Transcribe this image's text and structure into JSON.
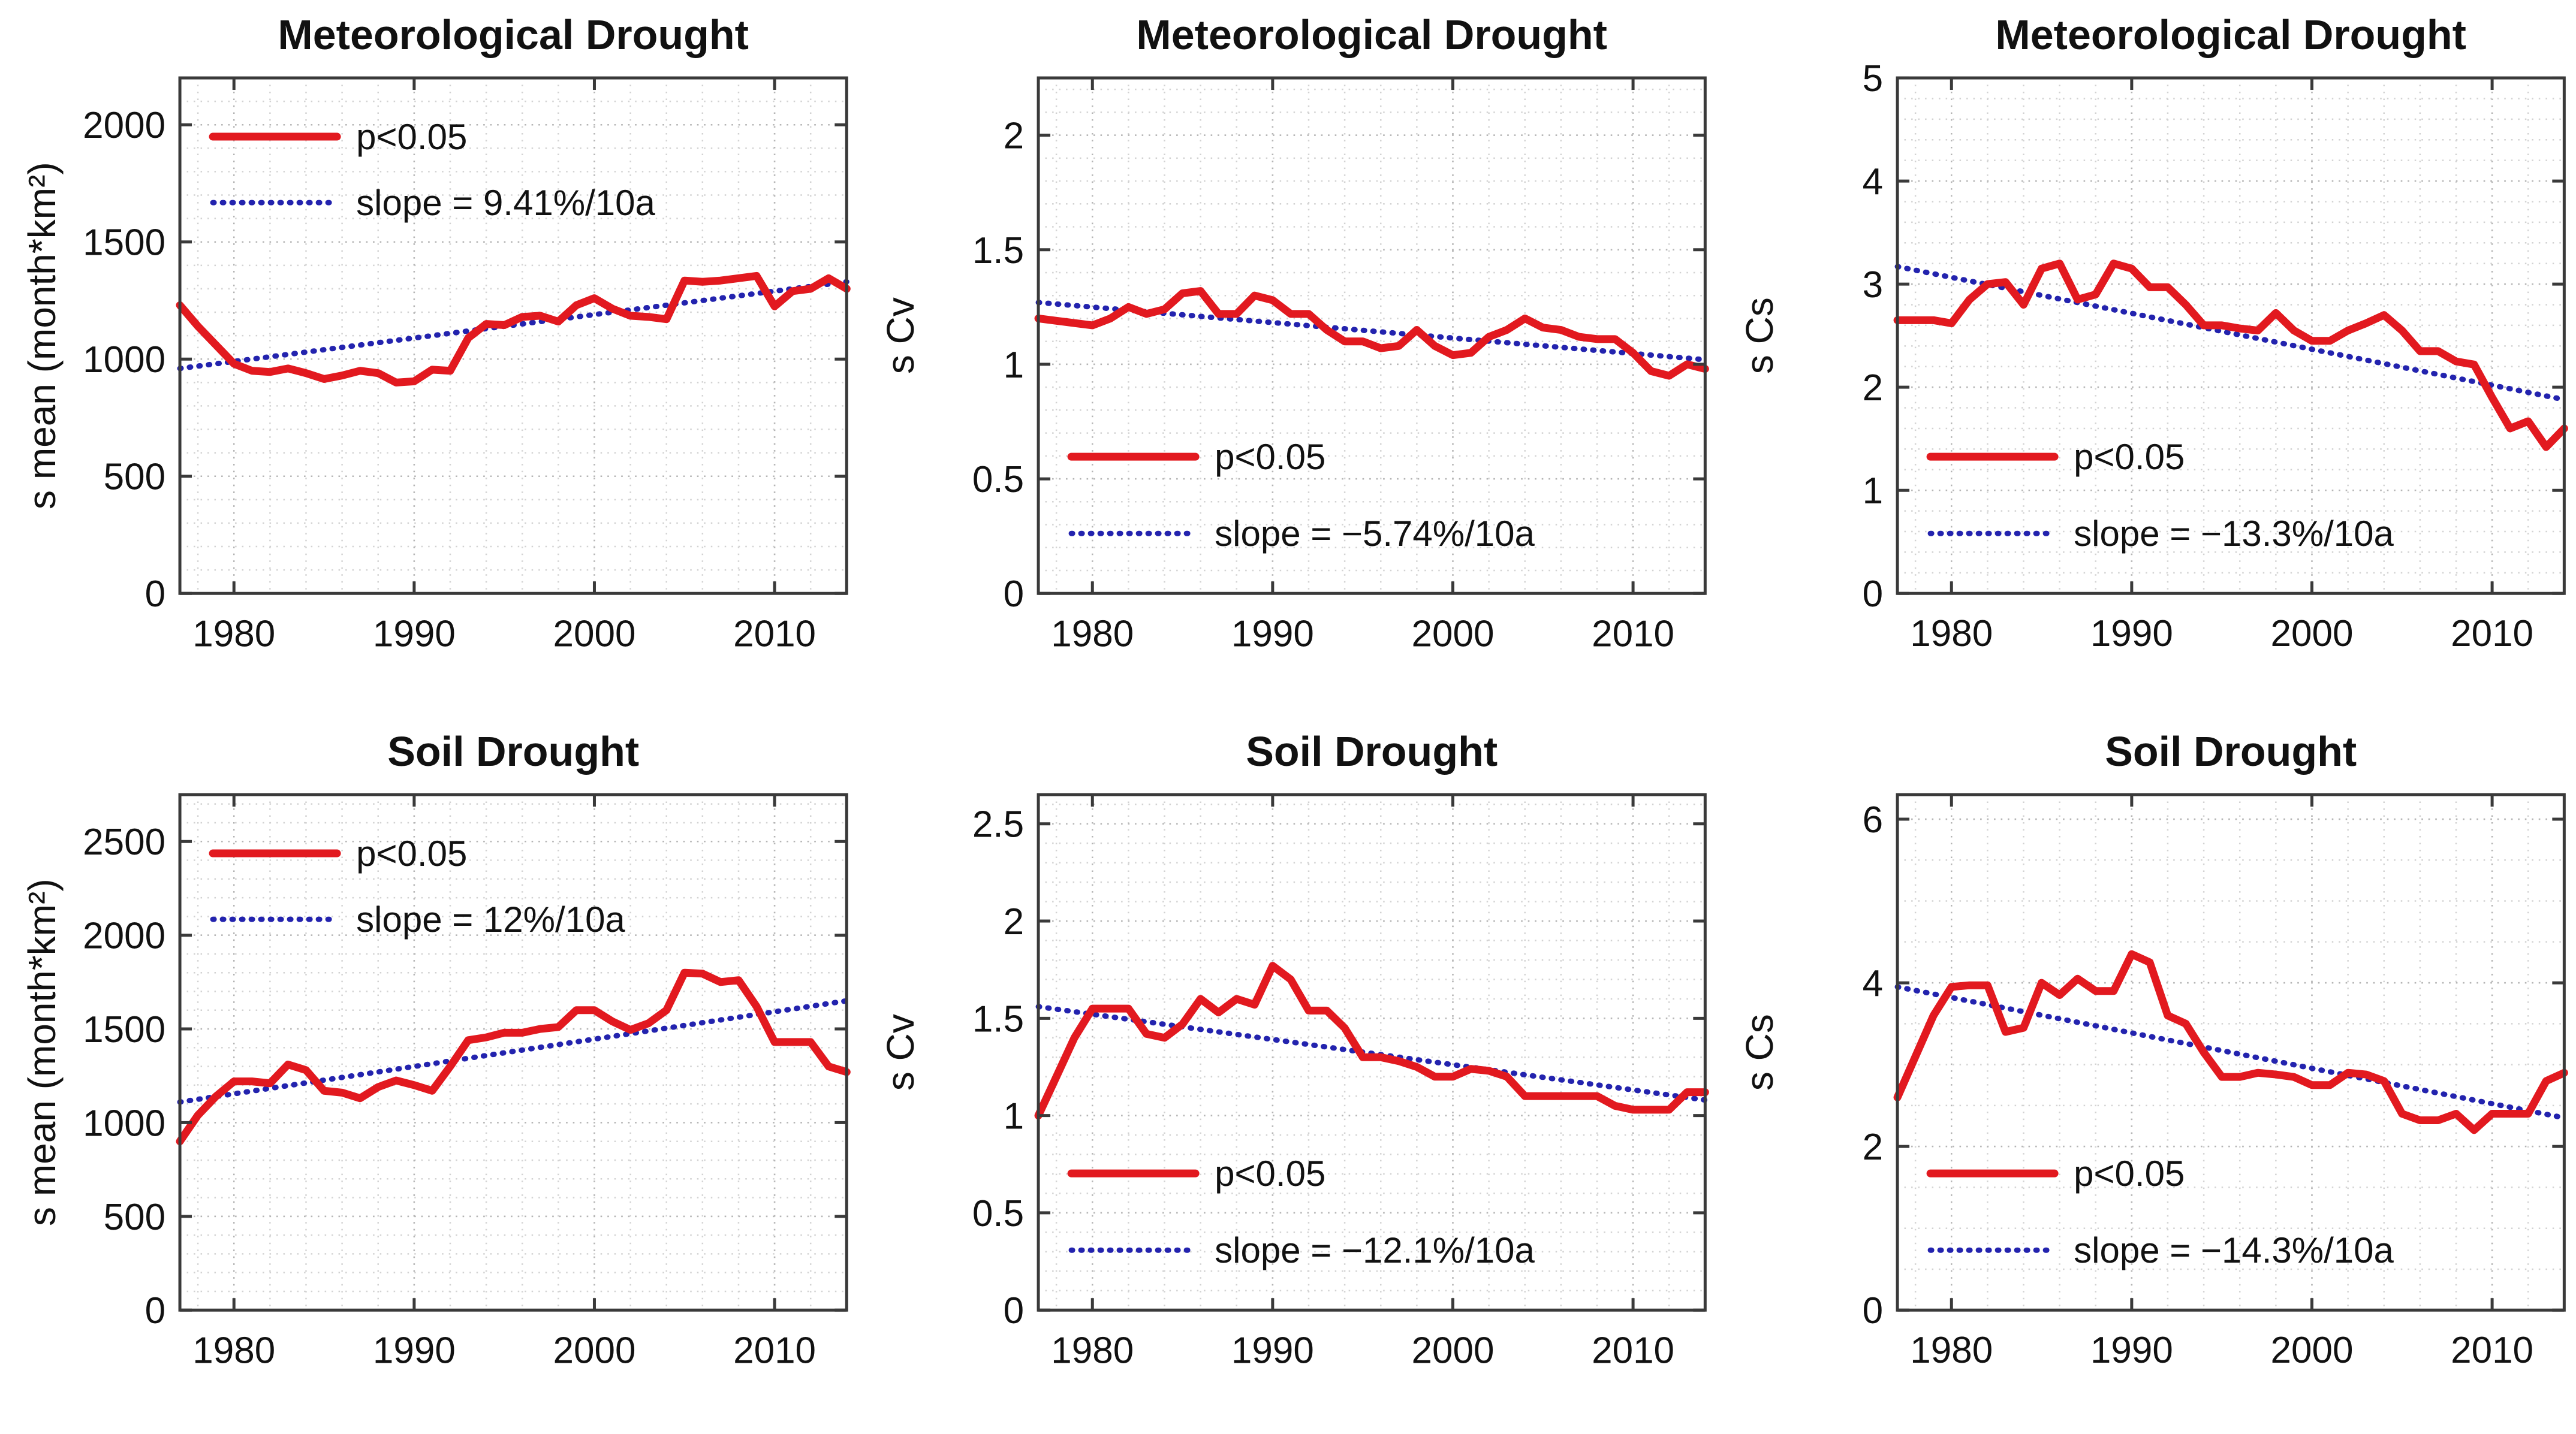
{
  "figure": {
    "background": "#ffffff",
    "series_color": "#e2191f",
    "trend_color": "#2323ae",
    "grid_color_major": "#b5b5b5",
    "grid_color_minor": "#d2d2d2",
    "axis_color": "#3a3a3a",
    "text_color": "#111111"
  },
  "chart_data": [
    {
      "id": "met-mean",
      "type": "line",
      "title": "Meteorological Drought",
      "xlabel": "",
      "ylabel": "s mean (month*km²)",
      "xlim": [
        1977,
        2014
      ],
      "ylim": [
        0,
        2200
      ],
      "xticks": [
        1980,
        1990,
        2000,
        2010
      ],
      "yticks": [
        0,
        500,
        1000,
        1500,
        2000
      ],
      "minor_x_step": 2,
      "minor_y_step": 100,
      "grid": true,
      "legend_position": "top-left",
      "legend": {
        "series_label": "p<0.05",
        "trend_label": "slope = 9.41%/10a"
      },
      "years": [
        1977,
        1978,
        1979,
        1980,
        1981,
        1982,
        1983,
        1984,
        1985,
        1986,
        1987,
        1988,
        1989,
        1990,
        1991,
        1992,
        1993,
        1994,
        1995,
        1996,
        1997,
        1998,
        1999,
        2000,
        2001,
        2002,
        2003,
        2004,
        2005,
        2006,
        2007,
        2008,
        2009,
        2010,
        2011,
        2012,
        2013,
        2014
      ],
      "series": [
        {
          "name": "p<0.05",
          "values": [
            1230,
            1140,
            1060,
            980,
            950,
            945,
            960,
            940,
            915,
            930,
            950,
            940,
            900,
            905,
            955,
            950,
            1090,
            1150,
            1145,
            1180,
            1185,
            1160,
            1230,
            1260,
            1215,
            1185,
            1180,
            1170,
            1335,
            1330,
            1335,
            1345,
            1355,
            1225,
            1290,
            1300,
            1345,
            1300
          ]
        }
      ],
      "trend": {
        "name": "slope = 9.41%/10a",
        "start": 960,
        "end": 1330
      }
    },
    {
      "id": "met-cv",
      "type": "line",
      "title": "Meteorological Drought",
      "xlabel": "",
      "ylabel": "s Cv",
      "xlim": [
        1977,
        2014
      ],
      "ylim": [
        0,
        2.25
      ],
      "xticks": [
        1980,
        1990,
        2000,
        2010
      ],
      "yticks": [
        0,
        0.5,
        1,
        1.5,
        2
      ],
      "minor_x_step": 2,
      "minor_y_step": 0.1,
      "grid": true,
      "legend_position": "bottom-left",
      "legend": {
        "series_label": "p<0.05",
        "trend_label": "slope = −5.74%/10a"
      },
      "years": [
        1977,
        1978,
        1979,
        1980,
        1981,
        1982,
        1983,
        1984,
        1985,
        1986,
        1987,
        1988,
        1989,
        1990,
        1991,
        1992,
        1993,
        1994,
        1995,
        1996,
        1997,
        1998,
        1999,
        2000,
        2001,
        2002,
        2003,
        2004,
        2005,
        2006,
        2007,
        2008,
        2009,
        2010,
        2011,
        2012,
        2013,
        2014
      ],
      "series": [
        {
          "name": "p<0.05",
          "values": [
            1.2,
            1.19,
            1.18,
            1.17,
            1.2,
            1.25,
            1.22,
            1.24,
            1.31,
            1.32,
            1.22,
            1.22,
            1.3,
            1.28,
            1.22,
            1.22,
            1.15,
            1.1,
            1.1,
            1.07,
            1.08,
            1.15,
            1.08,
            1.04,
            1.05,
            1.12,
            1.15,
            1.2,
            1.16,
            1.15,
            1.12,
            1.11,
            1.11,
            1.05,
            0.97,
            0.95,
            1.0,
            0.98
          ]
        }
      ],
      "trend": {
        "name": "slope = −5.74%/10a",
        "start": 1.27,
        "end": 1.02
      }
    },
    {
      "id": "met-cs",
      "type": "line",
      "title": "Meteorological Drought",
      "xlabel": "",
      "ylabel": "s Cs",
      "xlim": [
        1977,
        2014
      ],
      "ylim": [
        0,
        5
      ],
      "xticks": [
        1980,
        1990,
        2000,
        2010
      ],
      "yticks": [
        0,
        1,
        2,
        3,
        4,
        5
      ],
      "minor_x_step": 2,
      "minor_y_step": 0.2,
      "grid": true,
      "legend_position": "bottom-left",
      "legend": {
        "series_label": "p<0.05",
        "trend_label": "slope = −13.3%/10a"
      },
      "years": [
        1977,
        1978,
        1979,
        1980,
        1981,
        1982,
        1983,
        1984,
        1985,
        1986,
        1987,
        1988,
        1989,
        1990,
        1991,
        1992,
        1993,
        1994,
        1995,
        1996,
        1997,
        1998,
        1999,
        2000,
        2001,
        2002,
        2003,
        2004,
        2005,
        2006,
        2007,
        2008,
        2009,
        2010,
        2011,
        2012,
        2013,
        2014
      ],
      "series": [
        {
          "name": "p<0.05",
          "values": [
            2.65,
            2.65,
            2.65,
            2.62,
            2.85,
            3.0,
            3.02,
            2.8,
            3.15,
            3.2,
            2.85,
            2.9,
            3.2,
            3.15,
            2.97,
            2.97,
            2.8,
            2.6,
            2.6,
            2.57,
            2.55,
            2.72,
            2.55,
            2.45,
            2.45,
            2.55,
            2.62,
            2.7,
            2.55,
            2.35,
            2.35,
            2.25,
            2.22,
            1.9,
            1.6,
            1.67,
            1.42,
            1.6
          ]
        }
      ],
      "trend": {
        "name": "slope = −13.3%/10a",
        "start": 3.17,
        "end": 1.88
      }
    },
    {
      "id": "soil-mean",
      "type": "line",
      "title": "Soil Drought",
      "xlabel": "",
      "ylabel": "s mean (month*km²)",
      "xlim": [
        1977,
        2014
      ],
      "ylim": [
        0,
        2750
      ],
      "xticks": [
        1980,
        1990,
        2000,
        2010
      ],
      "yticks": [
        0,
        500,
        1000,
        1500,
        2000,
        2500
      ],
      "minor_x_step": 2,
      "minor_y_step": 100,
      "grid": true,
      "legend_position": "top-left",
      "legend": {
        "series_label": "p<0.05",
        "trend_label": "slope = 12%/10a"
      },
      "years": [
        1977,
        1978,
        1979,
        1980,
        1981,
        1982,
        1983,
        1984,
        1985,
        1986,
        1987,
        1988,
        1989,
        1990,
        1991,
        1992,
        1993,
        1994,
        1995,
        1996,
        1997,
        1998,
        1999,
        2000,
        2001,
        2002,
        2003,
        2004,
        2005,
        2006,
        2007,
        2008,
        2009,
        2010,
        2011,
        2012,
        2013,
        2014
      ],
      "series": [
        {
          "name": "p<0.05",
          "values": [
            900,
            1040,
            1140,
            1220,
            1220,
            1210,
            1310,
            1280,
            1170,
            1160,
            1130,
            1190,
            1225,
            1200,
            1170,
            1300,
            1440,
            1455,
            1480,
            1480,
            1500,
            1510,
            1600,
            1600,
            1540,
            1495,
            1530,
            1600,
            1800,
            1795,
            1750,
            1760,
            1620,
            1430,
            1430,
            1430,
            1300,
            1270
          ]
        }
      ],
      "trend": {
        "name": "slope = 12%/10a",
        "start": 1110,
        "end": 1650
      }
    },
    {
      "id": "soil-cv",
      "type": "line",
      "title": "Soil Drought",
      "xlabel": "",
      "ylabel": "s Cv",
      "xlim": [
        1977,
        2014
      ],
      "ylim": [
        0,
        2.65
      ],
      "xticks": [
        1980,
        1990,
        2000,
        2010
      ],
      "yticks": [
        0,
        0.5,
        1,
        1.5,
        2,
        2.5
      ],
      "minor_x_step": 2,
      "minor_y_step": 0.1,
      "grid": true,
      "legend_position": "bottom-left",
      "legend": {
        "series_label": "p<0.05",
        "trend_label": "slope = −12.1%/10a"
      },
      "years": [
        1977,
        1978,
        1979,
        1980,
        1981,
        1982,
        1983,
        1984,
        1985,
        1986,
        1987,
        1988,
        1989,
        1990,
        1991,
        1992,
        1993,
        1994,
        1995,
        1996,
        1997,
        1998,
        1999,
        2000,
        2001,
        2002,
        2003,
        2004,
        2005,
        2006,
        2007,
        2008,
        2009,
        2010,
        2011,
        2012,
        2013,
        2014
      ],
      "series": [
        {
          "name": "p<0.05",
          "values": [
            1.0,
            1.2,
            1.4,
            1.55,
            1.55,
            1.55,
            1.42,
            1.4,
            1.47,
            1.6,
            1.53,
            1.6,
            1.57,
            1.77,
            1.7,
            1.54,
            1.54,
            1.45,
            1.3,
            1.3,
            1.28,
            1.25,
            1.2,
            1.2,
            1.24,
            1.23,
            1.2,
            1.1,
            1.1,
            1.1,
            1.1,
            1.1,
            1.05,
            1.03,
            1.03,
            1.03,
            1.12,
            1.12
          ]
        }
      ],
      "trend": {
        "name": "slope = −12.1%/10a",
        "start": 1.56,
        "end": 1.08
      }
    },
    {
      "id": "soil-cs",
      "type": "line",
      "title": "Soil Drought",
      "xlabel": "",
      "ylabel": "s Cs",
      "xlim": [
        1977,
        2014
      ],
      "ylim": [
        0,
        6.3
      ],
      "xticks": [
        1980,
        1990,
        2000,
        2010
      ],
      "yticks": [
        0,
        2,
        4,
        6
      ],
      "minor_x_step": 2,
      "minor_y_step": 0.5,
      "grid": true,
      "legend_position": "bottom-left",
      "legend": {
        "series_label": "p<0.05",
        "trend_label": "slope = −14.3%/10a"
      },
      "years": [
        1977,
        1978,
        1979,
        1980,
        1981,
        1982,
        1983,
        1984,
        1985,
        1986,
        1987,
        1988,
        1989,
        1990,
        1991,
        1992,
        1993,
        1994,
        1995,
        1996,
        1997,
        1998,
        1999,
        2000,
        2001,
        2002,
        2003,
        2004,
        2005,
        2006,
        2007,
        2008,
        2009,
        2010,
        2011,
        2012,
        2013,
        2014
      ],
      "series": [
        {
          "name": "p<0.05",
          "values": [
            2.6,
            3.1,
            3.6,
            3.95,
            3.97,
            3.97,
            3.4,
            3.45,
            4.0,
            3.85,
            4.05,
            3.9,
            3.9,
            4.35,
            4.25,
            3.6,
            3.5,
            3.15,
            2.85,
            2.85,
            2.9,
            2.88,
            2.85,
            2.75,
            2.75,
            2.9,
            2.88,
            2.8,
            2.4,
            2.32,
            2.32,
            2.4,
            2.2,
            2.4,
            2.4,
            2.4,
            2.8,
            2.9
          ]
        }
      ],
      "trend": {
        "name": "slope = −14.3%/10a",
        "start": 3.95,
        "end": 2.35
      }
    }
  ]
}
